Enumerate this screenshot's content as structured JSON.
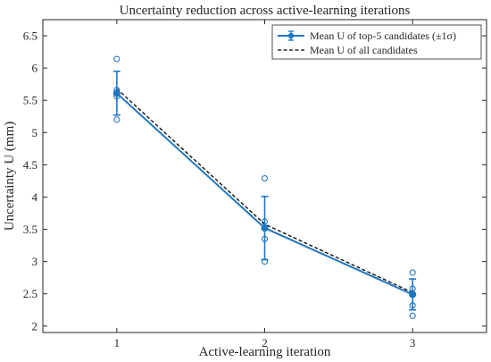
{
  "chart_data": {
    "type": "line",
    "title": "Uncertainty reduction across active-learning iterations",
    "xlabel": "Active-learning iteration",
    "ylabel": "Uncertainty U (mm)",
    "xlim": [
      0.5,
      3.5
    ],
    "ylim": [
      1.9,
      6.75
    ],
    "xticks": [
      1,
      2,
      3
    ],
    "xtick_labels": [
      "1",
      "2",
      "3"
    ],
    "yticks": [
      2,
      2.5,
      3,
      3.5,
      4,
      4.5,
      5,
      5.5,
      6,
      6.5
    ],
    "ytick_labels": [
      "2",
      "2.5",
      "3",
      "3.5",
      "4",
      "4.5",
      "5",
      "5.5",
      "6",
      "6.5"
    ],
    "grid": false,
    "legend_position": "top-right",
    "series": [
      {
        "name": "Mean U of top-5 candidates (±1σ)",
        "style": "solid-with-errorbars",
        "color": "#1f77c4",
        "x": [
          1,
          2,
          3
        ],
        "y": [
          5.61,
          3.52,
          2.49
        ],
        "error": [
          0.34,
          0.49,
          0.24
        ]
      },
      {
        "name": "Mean U of all candidates",
        "style": "dashed",
        "color": "#000000",
        "x": [
          1,
          2,
          3
        ],
        "y": [
          5.68,
          3.58,
          2.52
        ]
      }
    ],
    "scatter": {
      "color": "#1f77c4",
      "points": [
        {
          "x": 1,
          "y": 6.14
        },
        {
          "x": 1,
          "y": 5.66
        },
        {
          "x": 1,
          "y": 5.61
        },
        {
          "x": 1,
          "y": 5.56
        },
        {
          "x": 1,
          "y": 5.2
        },
        {
          "x": 2,
          "y": 4.29
        },
        {
          "x": 2,
          "y": 3.62
        },
        {
          "x": 2,
          "y": 3.52
        },
        {
          "x": 2,
          "y": 3.35
        },
        {
          "x": 2,
          "y": 3.0
        },
        {
          "x": 3,
          "y": 2.83
        },
        {
          "x": 3,
          "y": 2.58
        },
        {
          "x": 3,
          "y": 2.49
        },
        {
          "x": 3,
          "y": 2.32
        },
        {
          "x": 3,
          "y": 2.16
        }
      ]
    }
  }
}
